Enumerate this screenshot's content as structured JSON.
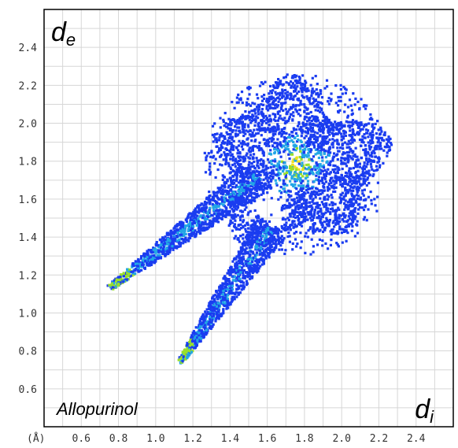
{
  "chart_data": {
    "type": "heatmap",
    "title": "",
    "xlabel": "d",
    "xlabel_sub": "i",
    "ylabel": "d",
    "ylabel_sub": "e",
    "unit": "(Å)",
    "annotation": "Allopurinol",
    "xlim": [
      0.4,
      2.6
    ],
    "ylim": [
      0.4,
      2.6
    ],
    "x_ticks": [
      "0.6",
      "0.8",
      "1.0",
      "1.2",
      "1.4",
      "1.6",
      "1.8",
      "2.0",
      "2.2",
      "2.4"
    ],
    "x_tick_values": [
      0.6,
      0.8,
      1.0,
      1.2,
      1.4,
      1.6,
      1.8,
      2.0,
      2.2,
      2.4
    ],
    "y_ticks": [
      "0.6",
      "0.8",
      "1.0",
      "1.2",
      "1.4",
      "1.6",
      "1.8",
      "2.0",
      "2.2",
      "2.4"
    ],
    "y_tick_values": [
      0.6,
      0.8,
      1.0,
      1.2,
      1.4,
      1.6,
      1.8,
      2.0,
      2.2,
      2.4
    ],
    "grid": true,
    "colors": {
      "low": "#1a3cf0",
      "mid": "#22a6e6",
      "high": "#9adf2a",
      "peak": "#f0e020",
      "grid": "#d6d6d6",
      "frame": "#000000"
    },
    "regions": [
      {
        "name": "upper-spike",
        "from": [
          0.75,
          1.13
        ],
        "to": [
          1.55,
          1.72
        ],
        "density": "high-edge"
      },
      {
        "name": "lower-spike",
        "from": [
          1.13,
          0.74
        ],
        "to": [
          1.6,
          1.45
        ],
        "density": "high-edge"
      },
      {
        "name": "main-body",
        "center": [
          1.75,
          1.72
        ],
        "extent": [
          0.45,
          0.42
        ],
        "density": "high-center"
      },
      {
        "name": "top-right-lobe",
        "center": [
          1.95,
          1.62
        ],
        "extent": [
          0.18,
          0.3
        ],
        "density": "low"
      }
    ]
  }
}
